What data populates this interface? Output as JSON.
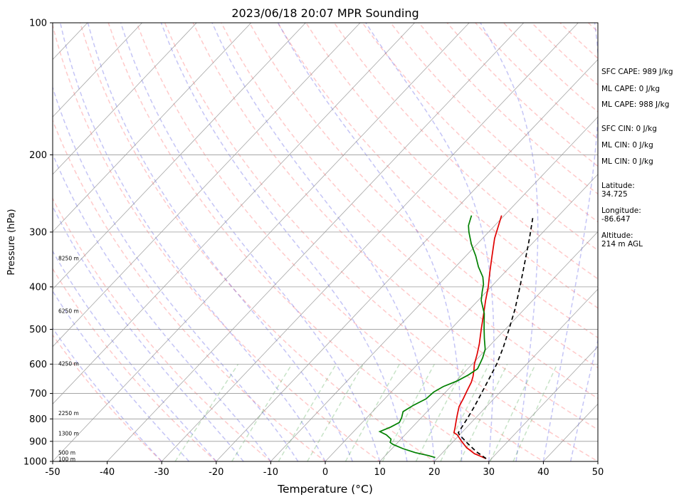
{
  "chart_data": {
    "type": "line",
    "title": "2023/06/18 20:07 MPR Sounding",
    "xlabel": "Temperature (°C)",
    "ylabel": "Pressure (hPa)",
    "xlim": [
      -50,
      50
    ],
    "ylim": [
      1000,
      100
    ],
    "y_scale": "log",
    "skew": true,
    "grid": true,
    "x_ticks": [
      -50,
      -40,
      -30,
      -20,
      -10,
      0,
      10,
      20,
      30,
      40,
      50
    ],
    "y_ticks": [
      100,
      200,
      300,
      400,
      500,
      600,
      700,
      800,
      900,
      1000
    ],
    "height_labels": [
      {
        "label": "100 m",
        "p": 990
      },
      {
        "label": "500 m",
        "p": 958
      },
      {
        "label": "1300 m",
        "p": 866
      },
      {
        "label": "2250 m",
        "p": 778
      },
      {
        "label": "4250 m",
        "p": 600
      },
      {
        "label": "6250 m",
        "p": 455
      },
      {
        "label": "8250 m",
        "p": 345
      }
    ],
    "series": [
      {
        "color": "#e00000",
        "p": [
          985,
          960,
          930,
          900,
          870,
          860,
          840,
          810,
          780,
          750,
          720,
          690,
          660,
          640,
          620,
          600,
          570,
          540,
          500,
          460,
          430,
          400,
          370,
          340,
          310,
          275
        ],
        "t": [
          29,
          26,
          23.5,
          21.5,
          19.6,
          18.6,
          18,
          17,
          16,
          15,
          14.4,
          13.7,
          13,
          12.3,
          11.4,
          10.4,
          9.2,
          7.8,
          5.6,
          3.3,
          1.4,
          -0.5,
          -2.8,
          -5.2,
          -7.8,
          -10.5
        ]
      },
      {
        "color": "#008000",
        "p": [
          980,
          970,
          955,
          935,
          915,
          905,
          890,
          870,
          855,
          835,
          815,
          795,
          770,
          745,
          720,
          695,
          675,
          655,
          635,
          615,
          600,
          580,
          555,
          525,
          495,
          460,
          430,
          410,
          395,
          380,
          360,
          340,
          320,
          300,
          290,
          280,
          275
        ],
        "t": [
          19.5,
          18,
          15,
          12,
          9.5,
          8.6,
          8.2,
          6.6,
          4.8,
          6,
          6.8,
          6.4,
          5.6,
          6.4,
          7.6,
          7.8,
          8.6,
          10.2,
          11.2,
          11.8,
          11.4,
          10.8,
          9.8,
          7.8,
          5.8,
          3.4,
          0.6,
          -0.8,
          -1.8,
          -3.2,
          -5.8,
          -8.2,
          -11,
          -13.6,
          -14.8,
          -15.6,
          -16
        ]
      },
      {
        "color": "#000000",
        "dashed": true,
        "p": [
          985,
          950,
          910,
          870,
          860,
          800,
          750,
          700,
          650,
          600,
          550,
          500,
          450,
          400,
          350,
          310,
          278
        ],
        "t": [
          29,
          26,
          23,
          20,
          19.4,
          18.6,
          17.8,
          16.8,
          15.7,
          14.5,
          12.8,
          10.7,
          8.3,
          5.3,
          1.8,
          -1.4,
          -4.4
        ]
      }
    ]
  },
  "info": {
    "sfc_cape": "SFC CAPE: 989 J/kg",
    "ml_cape_1": "ML CAPE: 0 J/kg",
    "ml_cape_2": "ML CAPE: 988 J/kg",
    "sfc_cin": "SFC CIN: 0 J/kg",
    "ml_cin_1": "ML CIN: 0 J/kg",
    "ml_cin_2": "ML CIN: 0 J/kg",
    "latitude_label": "Latitude:",
    "latitude_value": "34.725",
    "longitude_label": "Longitude:",
    "longitude_value": "-86.647",
    "altitude_label": "Altitude:",
    "altitude_value": "214 m AGL"
  }
}
